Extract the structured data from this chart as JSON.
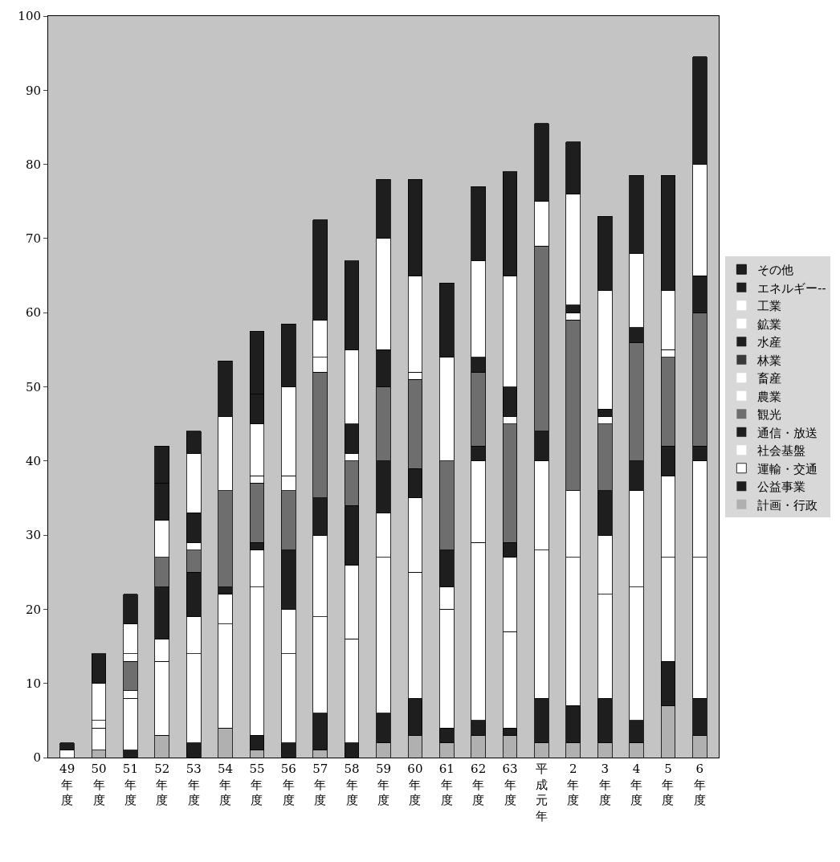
{
  "chart_data": {
    "type": "bar",
    "stacked": true,
    "categories": [
      "49年度",
      "50年度",
      "51年度",
      "52年度",
      "53年度",
      "54年度",
      "55年度",
      "56年度",
      "57年度",
      "58年度",
      "59年度",
      "60年度",
      "61年度",
      "62年度",
      "63年度",
      "平成元年",
      "2年度",
      "3年度",
      "4年度",
      "5年度",
      "6年度"
    ],
    "ylim": [
      0,
      100
    ],
    "yticks": [
      0,
      10,
      20,
      30,
      40,
      50,
      60,
      70,
      80,
      90,
      100
    ],
    "grid": false,
    "legend": "right",
    "series": [
      {
        "name": "計画・行政",
        "color": "#b0b0b0",
        "values": [
          0,
          1,
          0,
          3,
          0,
          4,
          1,
          0,
          1,
          0,
          2,
          3,
          2,
          3,
          3,
          2,
          2,
          2,
          2,
          7,
          3
        ]
      },
      {
        "name": "公益事業",
        "color": "#1e1e1e",
        "values": [
          0,
          0,
          1,
          0,
          2,
          0,
          2,
          2,
          5,
          2,
          4,
          5,
          2,
          2,
          1,
          6,
          5,
          6,
          3,
          6,
          5
        ]
      },
      {
        "name": "運輸・交通",
        "color": "#ffffff",
        "values": [
          1,
          3,
          7,
          10,
          12,
          14,
          20,
          12,
          13,
          14,
          21,
          17,
          16,
          24,
          13,
          20,
          20,
          14,
          18,
          14,
          19
        ]
      },
      {
        "name": "社会基盤",
        "color": "#ffffff",
        "values": [
          0,
          1,
          1,
          3,
          5,
          4,
          5,
          6,
          11,
          10,
          6,
          10,
          3,
          11,
          10,
          12,
          9,
          8,
          13,
          11,
          13
        ]
      },
      {
        "name": "通信・放送",
        "color": "#1e1e1e",
        "values": [
          0,
          0,
          0,
          7,
          6,
          1,
          1,
          8,
          5,
          8,
          7,
          4,
          5,
          2,
          2,
          4,
          0,
          6,
          4,
          4,
          2
        ]
      },
      {
        "name": "観光",
        "color": "#6e6e6e",
        "values": [
          0,
          0,
          4,
          4,
          3,
          13,
          8,
          8,
          17,
          6,
          10,
          12,
          12,
          10,
          16,
          25,
          23,
          9,
          16,
          12,
          18
        ]
      },
      {
        "name": "農業",
        "color": "#ffffff",
        "values": [
          0,
          0,
          1,
          0,
          1,
          0,
          1,
          2,
          2,
          1,
          0,
          1,
          0,
          0,
          1,
          0,
          1,
          1,
          0,
          1,
          0
        ]
      },
      {
        "name": "畜産",
        "color": "#ffffff",
        "values": [
          0,
          0,
          0,
          0,
          0,
          0,
          0,
          0,
          0,
          0,
          0,
          0,
          0,
          0,
          0,
          0,
          0,
          0,
          0,
          0,
          0
        ]
      },
      {
        "name": "林業",
        "color": "#3a3a3a",
        "values": [
          0,
          0,
          0,
          0,
          0,
          0,
          0,
          0,
          0,
          0,
          0,
          0,
          0,
          0,
          0,
          0,
          0,
          0,
          0,
          0,
          0
        ]
      },
      {
        "name": "水産",
        "color": "#1e1e1e",
        "values": [
          0,
          0,
          0,
          0,
          4,
          0,
          0,
          0,
          0,
          4,
          5,
          0,
          0,
          2,
          4,
          0,
          1,
          1,
          2,
          0,
          5
        ]
      },
      {
        "name": "鉱業",
        "color": "#ffffff",
        "values": [
          0,
          0,
          0,
          0,
          0,
          0,
          0,
          0,
          0,
          0,
          0,
          0,
          0,
          0,
          0,
          0,
          0,
          0,
          0,
          0,
          0
        ]
      },
      {
        "name": "工業",
        "color": "#ffffff",
        "values": [
          0,
          5,
          4,
          5,
          8,
          10,
          7,
          12,
          5,
          10,
          15,
          13,
          14,
          13,
          15,
          6,
          15,
          16,
          10,
          8,
          15
        ]
      },
      {
        "name": "エネルギー--",
        "color": "#1e1e1e",
        "values": [
          0,
          0,
          0,
          5,
          0,
          0,
          4,
          0,
          0,
          0,
          0,
          0,
          0,
          0,
          0,
          0,
          0,
          0,
          0,
          0,
          0
        ]
      },
      {
        "name": "その他",
        "color": "#1e1e1e",
        "values": [
          1,
          4,
          4,
          5,
          3,
          7.5,
          8.5,
          8.5,
          13.5,
          12,
          8,
          13,
          10,
          10,
          14,
          10.5,
          7,
          10,
          10.5,
          15.5,
          14.5
        ]
      }
    ]
  }
}
